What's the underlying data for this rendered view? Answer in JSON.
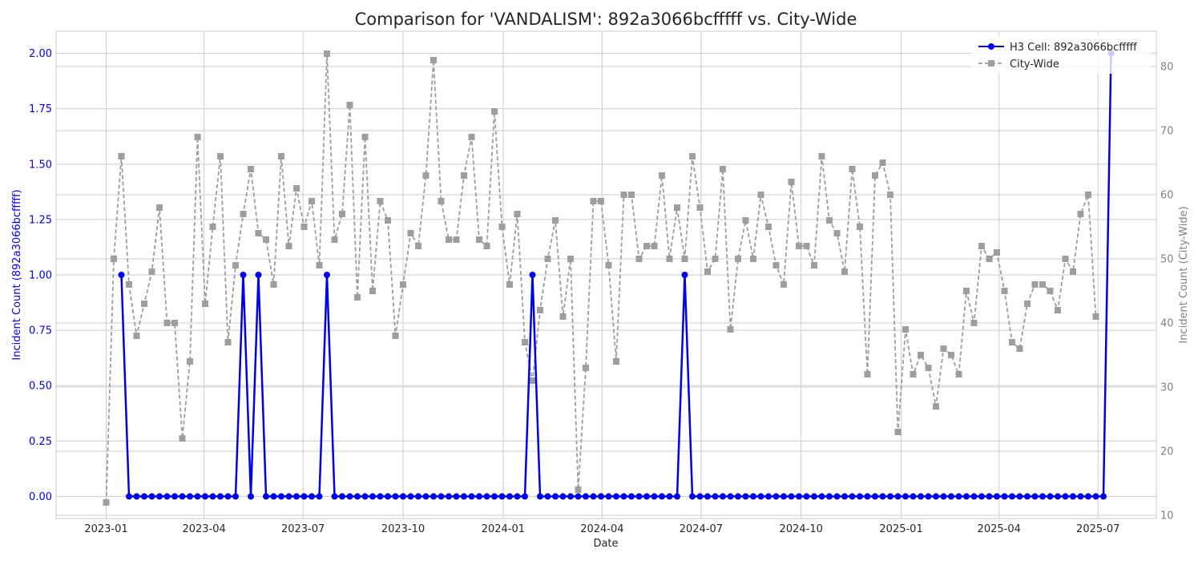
{
  "chart_data": {
    "type": "line",
    "title": "Comparison for 'VANDALISM': 892a3066bcfffff vs. City-Wide",
    "xlabel": "Date",
    "ylabel_left": "Incident Count (892a3066bcfffff)",
    "ylabel_right": "Incident Count (City-Wide)",
    "x_tick_labels": [
      "2023-01",
      "2023-04",
      "2023-07",
      "2023-10",
      "2024-01",
      "2024-04",
      "2024-07",
      "2024-10",
      "2025-01",
      "2025-04",
      "2025-07"
    ],
    "left_ylim": [
      -0.1,
      2.1
    ],
    "left_ticks": [
      "0.00",
      "0.25",
      "0.50",
      "0.75",
      "1.00",
      "1.25",
      "1.50",
      "1.75",
      "2.00"
    ],
    "right_ylim": [
      9.5,
      85.5
    ],
    "right_ticks": [
      "10",
      "20",
      "30",
      "40",
      "50",
      "60",
      "70",
      "80"
    ],
    "grid": true,
    "legend_position": "top-right",
    "colors": {
      "h3": "#0000ee",
      "city": "#9e9e9e",
      "left_axis": "#0000ee",
      "right_axis": "#808080"
    },
    "x_start": "2023-01-01",
    "x_step_days": 7,
    "series": [
      {
        "name": "H3 Cell: 892a3066bcfffff",
        "axis": "left",
        "style": "solid-circle",
        "points": [
          [
            2,
            1
          ],
          [
            3,
            0
          ],
          [
            4,
            0
          ],
          [
            5,
            0
          ],
          [
            6,
            0
          ],
          [
            7,
            0
          ],
          [
            8,
            0
          ],
          [
            9,
            0
          ],
          [
            10,
            0
          ],
          [
            11,
            0
          ],
          [
            12,
            0
          ],
          [
            13,
            0
          ],
          [
            14,
            0
          ],
          [
            15,
            0
          ],
          [
            16,
            0
          ],
          [
            17,
            0
          ],
          [
            18,
            1
          ],
          [
            19,
            0
          ],
          [
            20,
            1
          ],
          [
            21,
            0
          ],
          [
            22,
            0
          ],
          [
            23,
            0
          ],
          [
            24,
            0
          ],
          [
            25,
            0
          ],
          [
            26,
            0
          ],
          [
            27,
            0
          ],
          [
            28,
            0
          ],
          [
            29,
            1
          ],
          [
            30,
            0
          ],
          [
            31,
            0
          ],
          [
            32,
            0
          ],
          [
            33,
            0
          ],
          [
            34,
            0
          ],
          [
            35,
            0
          ],
          [
            36,
            0
          ],
          [
            37,
            0
          ],
          [
            38,
            0
          ],
          [
            39,
            0
          ],
          [
            40,
            0
          ],
          [
            41,
            0
          ],
          [
            42,
            0
          ],
          [
            43,
            0
          ],
          [
            44,
            0
          ],
          [
            45,
            0
          ],
          [
            46,
            0
          ],
          [
            47,
            0
          ],
          [
            48,
            0
          ],
          [
            49,
            0
          ],
          [
            50,
            0
          ],
          [
            51,
            0
          ],
          [
            52,
            0
          ],
          [
            53,
            0
          ],
          [
            54,
            0
          ],
          [
            55,
            0
          ],
          [
            56,
            1
          ],
          [
            57,
            0
          ],
          [
            58,
            0
          ],
          [
            59,
            0
          ],
          [
            60,
            0
          ],
          [
            61,
            0
          ],
          [
            62,
            0
          ],
          [
            63,
            0
          ],
          [
            64,
            0
          ],
          [
            65,
            0
          ],
          [
            66,
            0
          ],
          [
            67,
            0
          ],
          [
            68,
            0
          ],
          [
            69,
            0
          ],
          [
            70,
            0
          ],
          [
            71,
            0
          ],
          [
            72,
            0
          ],
          [
            73,
            0
          ],
          [
            74,
            0
          ],
          [
            75,
            0
          ],
          [
            76,
            1
          ],
          [
            77,
            0
          ],
          [
            78,
            0
          ],
          [
            79,
            0
          ],
          [
            80,
            0
          ],
          [
            81,
            0
          ],
          [
            82,
            0
          ],
          [
            83,
            0
          ],
          [
            84,
            0
          ],
          [
            85,
            0
          ],
          [
            86,
            0
          ],
          [
            87,
            0
          ],
          [
            88,
            0
          ],
          [
            89,
            0
          ],
          [
            90,
            0
          ],
          [
            91,
            0
          ],
          [
            92,
            0
          ],
          [
            93,
            0
          ],
          [
            94,
            0
          ],
          [
            95,
            0
          ],
          [
            96,
            0
          ],
          [
            97,
            0
          ],
          [
            98,
            0
          ],
          [
            99,
            0
          ],
          [
            100,
            0
          ],
          [
            101,
            0
          ],
          [
            102,
            0
          ],
          [
            103,
            0
          ],
          [
            104,
            0
          ],
          [
            105,
            0
          ],
          [
            106,
            0
          ],
          [
            107,
            0
          ],
          [
            108,
            0
          ],
          [
            109,
            0
          ],
          [
            110,
            0
          ],
          [
            111,
            0
          ],
          [
            112,
            0
          ],
          [
            113,
            0
          ],
          [
            114,
            0
          ],
          [
            115,
            0
          ],
          [
            116,
            0
          ],
          [
            117,
            0
          ],
          [
            118,
            0
          ],
          [
            119,
            0
          ],
          [
            120,
            0
          ],
          [
            121,
            0
          ],
          [
            122,
            0
          ],
          [
            123,
            0
          ],
          [
            124,
            0
          ],
          [
            125,
            0
          ],
          [
            126,
            0
          ],
          [
            127,
            0
          ],
          [
            128,
            0
          ],
          [
            129,
            0
          ],
          [
            130,
            0
          ],
          [
            131,
            0
          ],
          [
            132,
            2
          ]
        ]
      },
      {
        "name": "City-Wide",
        "axis": "right",
        "style": "dashed-square",
        "points": [
          [
            0,
            12
          ],
          [
            1,
            50
          ],
          [
            2,
            66
          ],
          [
            3,
            46
          ],
          [
            4,
            38
          ],
          [
            5,
            43
          ],
          [
            6,
            48
          ],
          [
            7,
            58
          ],
          [
            8,
            40
          ],
          [
            9,
            40
          ],
          [
            10,
            22
          ],
          [
            11,
            34
          ],
          [
            12,
            69
          ],
          [
            13,
            43
          ],
          [
            14,
            55
          ],
          [
            15,
            66
          ],
          [
            16,
            37
          ],
          [
            17,
            49
          ],
          [
            18,
            57
          ],
          [
            19,
            64
          ],
          [
            20,
            54
          ],
          [
            21,
            53
          ],
          [
            22,
            46
          ],
          [
            23,
            66
          ],
          [
            24,
            52
          ],
          [
            25,
            61
          ],
          [
            26,
            55
          ],
          [
            27,
            59
          ],
          [
            28,
            49
          ],
          [
            29,
            82
          ],
          [
            30,
            53
          ],
          [
            31,
            57
          ],
          [
            32,
            74
          ],
          [
            33,
            44
          ],
          [
            34,
            69
          ],
          [
            35,
            45
          ],
          [
            36,
            59
          ],
          [
            37,
            56
          ],
          [
            38,
            38
          ],
          [
            39,
            46
          ],
          [
            40,
            54
          ],
          [
            41,
            52
          ],
          [
            42,
            63
          ],
          [
            43,
            81
          ],
          [
            44,
            59
          ],
          [
            45,
            53
          ],
          [
            46,
            53
          ],
          [
            47,
            63
          ],
          [
            48,
            69
          ],
          [
            49,
            53
          ],
          [
            50,
            52
          ],
          [
            51,
            73
          ],
          [
            52,
            55
          ],
          [
            53,
            46
          ],
          [
            54,
            57
          ],
          [
            55,
            37
          ],
          [
            56,
            31
          ],
          [
            57,
            42
          ],
          [
            58,
            50
          ],
          [
            59,
            56
          ],
          [
            60,
            41
          ],
          [
            61,
            50
          ],
          [
            62,
            14
          ],
          [
            63,
            33
          ],
          [
            64,
            59
          ],
          [
            65,
            59
          ],
          [
            66,
            49
          ],
          [
            67,
            34
          ],
          [
            68,
            60
          ],
          [
            69,
            60
          ],
          [
            70,
            50
          ],
          [
            71,
            52
          ],
          [
            72,
            52
          ],
          [
            73,
            63
          ],
          [
            74,
            50
          ],
          [
            75,
            58
          ],
          [
            76,
            50
          ],
          [
            77,
            66
          ],
          [
            78,
            58
          ],
          [
            79,
            48
          ],
          [
            80,
            50
          ],
          [
            81,
            64
          ],
          [
            82,
            39
          ],
          [
            83,
            50
          ],
          [
            84,
            56
          ],
          [
            85,
            50
          ],
          [
            86,
            60
          ],
          [
            87,
            55
          ],
          [
            88,
            49
          ],
          [
            89,
            46
          ],
          [
            90,
            62
          ],
          [
            91,
            52
          ],
          [
            92,
            52
          ],
          [
            93,
            49
          ],
          [
            94,
            66
          ],
          [
            95,
            56
          ],
          [
            96,
            54
          ],
          [
            97,
            48
          ],
          [
            98,
            64
          ],
          [
            99,
            55
          ],
          [
            100,
            32
          ],
          [
            101,
            63
          ],
          [
            102,
            65
          ],
          [
            103,
            60
          ],
          [
            104,
            23
          ],
          [
            105,
            39
          ],
          [
            106,
            32
          ],
          [
            107,
            35
          ],
          [
            108,
            33
          ],
          [
            109,
            27
          ],
          [
            110,
            36
          ],
          [
            111,
            35
          ],
          [
            112,
            32
          ],
          [
            113,
            45
          ],
          [
            114,
            40
          ],
          [
            115,
            52
          ],
          [
            116,
            50
          ],
          [
            117,
            51
          ],
          [
            118,
            45
          ],
          [
            119,
            37
          ],
          [
            120,
            36
          ],
          [
            121,
            43
          ],
          [
            122,
            46
          ],
          [
            123,
            46
          ],
          [
            124,
            45
          ],
          [
            125,
            42
          ],
          [
            126,
            50
          ],
          [
            127,
            48
          ],
          [
            128,
            57
          ],
          [
            129,
            60
          ],
          [
            130,
            41
          ]
        ]
      }
    ]
  }
}
